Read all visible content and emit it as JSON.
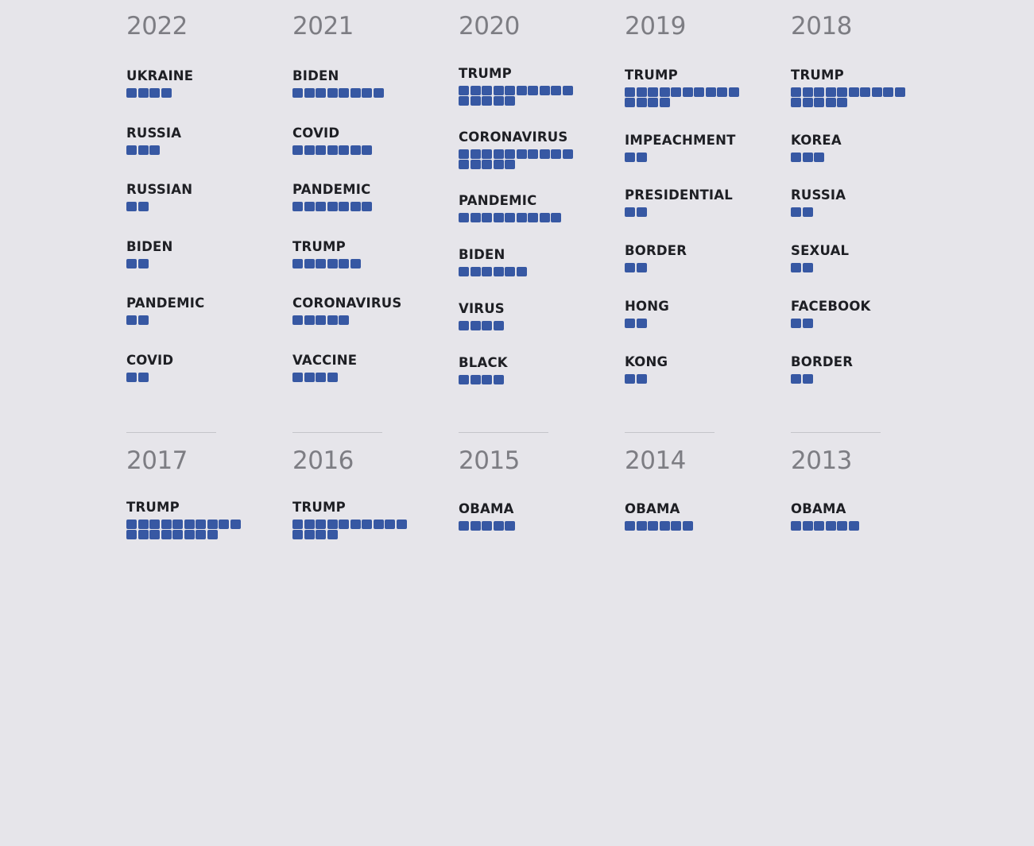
{
  "colors": {
    "background": "#e6e5ea",
    "square": "#3758a3",
    "year_text": "#7d7d83",
    "word_text": "#1e1f24",
    "divider": "#c4c4ca"
  },
  "chart_data": {
    "type": "table",
    "title": "",
    "description": "Top words per year; each square represents one unit of frequency",
    "years": [
      {
        "year": "2022",
        "words": [
          {
            "word": "UKRAINE",
            "count": 4
          },
          {
            "word": "RUSSIA",
            "count": 3
          },
          {
            "word": "RUSSIAN",
            "count": 2
          },
          {
            "word": "BIDEN",
            "count": 2
          },
          {
            "word": "PANDEMIC",
            "count": 2
          },
          {
            "word": "COVID",
            "count": 2
          }
        ]
      },
      {
        "year": "2021",
        "words": [
          {
            "word": "BIDEN",
            "count": 8
          },
          {
            "word": "COVID",
            "count": 7
          },
          {
            "word": "PANDEMIC",
            "count": 7
          },
          {
            "word": "TRUMP",
            "count": 6
          },
          {
            "word": "CORONAVIRUS",
            "count": 5
          },
          {
            "word": "VACCINE",
            "count": 4
          }
        ]
      },
      {
        "year": "2020",
        "words": [
          {
            "word": "TRUMP",
            "count": 15
          },
          {
            "word": "CORONAVIRUS",
            "count": 15
          },
          {
            "word": "PANDEMIC",
            "count": 9
          },
          {
            "word": "BIDEN",
            "count": 6
          },
          {
            "word": "VIRUS",
            "count": 4
          },
          {
            "word": "BLACK",
            "count": 4
          }
        ]
      },
      {
        "year": "2019",
        "words": [
          {
            "word": "TRUMP",
            "count": 14
          },
          {
            "word": "IMPEACHMENT",
            "count": 2
          },
          {
            "word": "PRESIDENTIAL",
            "count": 2
          },
          {
            "word": "BORDER",
            "count": 2
          },
          {
            "word": "HONG",
            "count": 2
          },
          {
            "word": "KONG",
            "count": 2
          }
        ]
      },
      {
        "year": "2018",
        "words": [
          {
            "word": "TRUMP",
            "count": 15
          },
          {
            "word": "KOREA",
            "count": 3
          },
          {
            "word": "RUSSIA",
            "count": 2
          },
          {
            "word": "SEXUAL",
            "count": 2
          },
          {
            "word": "FACEBOOK",
            "count": 2
          },
          {
            "word": "BORDER",
            "count": 2
          }
        ]
      },
      {
        "year": "2017",
        "words": [
          {
            "word": "TRUMP",
            "count": 18
          }
        ]
      },
      {
        "year": "2016",
        "words": [
          {
            "word": "TRUMP",
            "count": 14
          }
        ]
      },
      {
        "year": "2015",
        "words": [
          {
            "word": "OBAMA",
            "count": 5
          }
        ]
      },
      {
        "year": "2014",
        "words": [
          {
            "word": "OBAMA",
            "count": 6
          }
        ]
      },
      {
        "year": "2013",
        "words": [
          {
            "word": "OBAMA",
            "count": 6
          }
        ]
      }
    ]
  }
}
